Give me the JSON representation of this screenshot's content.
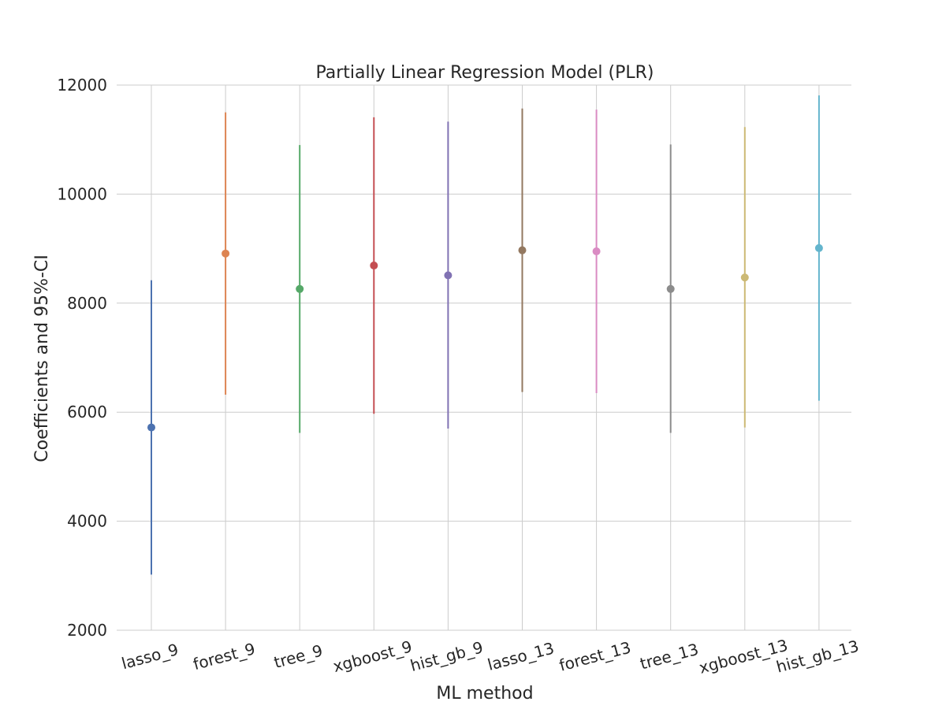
{
  "chart_data": {
    "type": "errorbar",
    "title": "Partially Linear Regression Model (PLR)",
    "xlabel": "ML method",
    "ylabel": "Coefficients and 95%-CI",
    "ylim": [
      2000,
      12000
    ],
    "yticks": [
      2000,
      4000,
      6000,
      8000,
      10000,
      12000
    ],
    "grid": true,
    "categories": [
      "lasso_9",
      "forest_9",
      "tree_9",
      "xgboost_9",
      "hist_gb_9",
      "lasso_13",
      "forest_13",
      "tree_13",
      "xgboost_13",
      "hist_gb_13"
    ],
    "coef": [
      5720,
      8910,
      8260,
      8690,
      8510,
      8970,
      8950,
      8260,
      8470,
      9010
    ],
    "ci_lower": [
      3020,
      6320,
      5620,
      5970,
      5700,
      6370,
      6350,
      5620,
      5720,
      6210
    ],
    "ci_upper": [
      8420,
      11500,
      10900,
      11410,
      11330,
      11570,
      11550,
      10910,
      11230,
      11810
    ],
    "colors": [
      "#4c72b0",
      "#dd8452",
      "#55a868",
      "#c44e52",
      "#8172b3",
      "#937860",
      "#da8bc3",
      "#8c8c8c",
      "#ccb974",
      "#64b5cd"
    ]
  }
}
